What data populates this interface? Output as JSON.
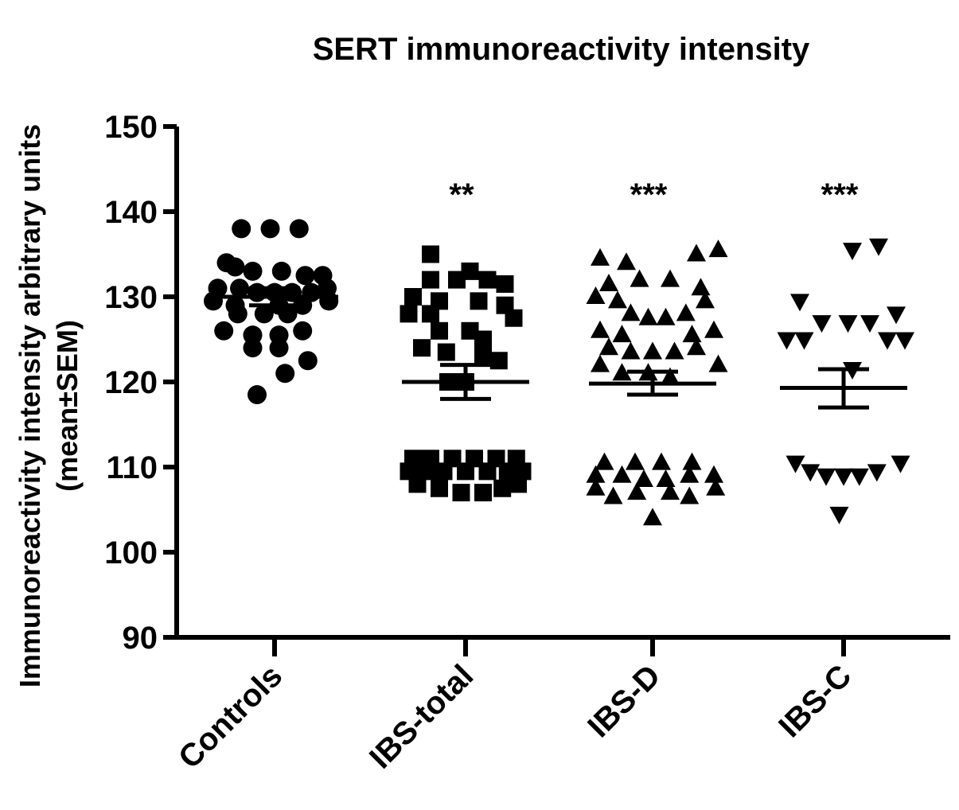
{
  "chart_data": {
    "type": "scatter",
    "title": "SERT immunoreactivity intensity",
    "ylabel_line1": "Immunoreactivity intensity arbitrary units",
    "ylabel_line2": "(mean±SEM)",
    "xlabel": "",
    "ylim": [
      90,
      150
    ],
    "yticks": [
      90,
      100,
      110,
      120,
      130,
      140,
      150
    ],
    "categories": [
      "Controls",
      "IBS-total",
      "IBS-D",
      "IBS-C"
    ],
    "grid": false,
    "legend": "none",
    "groups": [
      {
        "category": "Controls",
        "marker": "circle",
        "significance": "",
        "mean": 130.0,
        "sem_low": 129.0,
        "sem_high": 131.0,
        "points": [
          [
            -0.38,
            138
          ],
          [
            -0.05,
            138
          ],
          [
            0.28,
            138
          ],
          [
            -0.55,
            134
          ],
          [
            -0.45,
            133.5
          ],
          [
            -0.25,
            133
          ],
          [
            0.08,
            133
          ],
          [
            0.35,
            132.5
          ],
          [
            0.55,
            132.5
          ],
          [
            -0.65,
            131
          ],
          [
            -0.4,
            131
          ],
          [
            -0.2,
            130.5
          ],
          [
            0.0,
            130.5
          ],
          [
            0.2,
            130.5
          ],
          [
            0.42,
            130.5
          ],
          [
            0.6,
            131
          ],
          [
            -0.7,
            129.5
          ],
          [
            -0.45,
            129
          ],
          [
            0.05,
            129
          ],
          [
            0.32,
            129
          ],
          [
            0.62,
            129.5
          ],
          [
            -0.42,
            128
          ],
          [
            -0.12,
            128
          ],
          [
            0.15,
            128
          ],
          [
            -0.58,
            126
          ],
          [
            -0.25,
            125.5
          ],
          [
            0.05,
            125.5
          ],
          [
            0.32,
            126
          ],
          [
            -0.25,
            124
          ],
          [
            0.05,
            124
          ],
          [
            0.38,
            122.5
          ],
          [
            0.12,
            121
          ],
          [
            -0.2,
            118.5
          ]
        ]
      },
      {
        "category": "IBS-total",
        "marker": "square",
        "significance": "**",
        "mean": 120.0,
        "sem_low": 118.0,
        "sem_high": 122.0,
        "points": [
          [
            -0.4,
            135
          ],
          [
            -0.4,
            132
          ],
          [
            -0.1,
            132
          ],
          [
            0.05,
            133
          ],
          [
            0.25,
            132
          ],
          [
            0.45,
            131.5
          ],
          [
            -0.6,
            130
          ],
          [
            -0.3,
            129.5
          ],
          [
            0.15,
            129.5
          ],
          [
            0.45,
            129
          ],
          [
            -0.65,
            128
          ],
          [
            -0.4,
            128
          ],
          [
            0.55,
            127.5
          ],
          [
            -0.3,
            126
          ],
          [
            0.05,
            126
          ],
          [
            0.2,
            125
          ],
          [
            -0.5,
            124
          ],
          [
            -0.22,
            123.5
          ],
          [
            0.2,
            123
          ],
          [
            0.38,
            122.5
          ],
          [
            -0.2,
            120
          ],
          [
            0.0,
            120
          ],
          [
            -0.6,
            111
          ],
          [
            -0.4,
            111
          ],
          [
            -0.15,
            111
          ],
          [
            0.1,
            111
          ],
          [
            0.35,
            111
          ],
          [
            0.58,
            111
          ],
          [
            -0.65,
            109.5
          ],
          [
            -0.45,
            109.5
          ],
          [
            -0.25,
            109.5
          ],
          [
            0.0,
            109.5
          ],
          [
            0.25,
            109.5
          ],
          [
            0.48,
            109.5
          ],
          [
            0.65,
            109.5
          ],
          [
            -0.55,
            108
          ],
          [
            -0.3,
            107.5
          ],
          [
            -0.05,
            107
          ],
          [
            0.2,
            107
          ],
          [
            0.42,
            107.5
          ],
          [
            0.6,
            108
          ]
        ]
      },
      {
        "category": "IBS-D",
        "marker": "triangle",
        "significance": "***",
        "mean": 119.8,
        "sem_low": 118.5,
        "sem_high": 121.2,
        "points": [
          [
            -0.6,
            134.5
          ],
          [
            -0.3,
            134
          ],
          [
            0.5,
            135
          ],
          [
            0.75,
            135.5
          ],
          [
            -0.5,
            131.5
          ],
          [
            -0.15,
            132
          ],
          [
            0.2,
            132
          ],
          [
            0.55,
            131
          ],
          [
            -0.65,
            130
          ],
          [
            -0.4,
            129.5
          ],
          [
            0.6,
            129.5
          ],
          [
            -0.25,
            128
          ],
          [
            -0.05,
            127.5
          ],
          [
            0.15,
            127.5
          ],
          [
            0.38,
            128
          ],
          [
            -0.6,
            126
          ],
          [
            -0.35,
            125.5
          ],
          [
            0.45,
            125.5
          ],
          [
            0.7,
            126
          ],
          [
            -0.5,
            124
          ],
          [
            -0.25,
            123.5
          ],
          [
            0.0,
            123.5
          ],
          [
            0.25,
            123.5
          ],
          [
            0.5,
            124
          ],
          [
            -0.6,
            122
          ],
          [
            0.75,
            122
          ],
          [
            -0.35,
            121
          ],
          [
            -0.05,
            121
          ],
          [
            0.2,
            120.5
          ],
          [
            -0.55,
            110.5
          ],
          [
            -0.2,
            110.5
          ],
          [
            0.1,
            110.5
          ],
          [
            0.45,
            110.5
          ],
          [
            -0.65,
            109
          ],
          [
            -0.35,
            109
          ],
          [
            -0.1,
            108.5
          ],
          [
            0.15,
            108.5
          ],
          [
            0.42,
            109
          ],
          [
            0.7,
            109
          ],
          [
            -0.65,
            107.5
          ],
          [
            -0.45,
            106.5
          ],
          [
            -0.18,
            107
          ],
          [
            0.2,
            107
          ],
          [
            0.42,
            106.5
          ],
          [
            0.72,
            107.5
          ],
          [
            0.0,
            104
          ]
        ]
      },
      {
        "category": "IBS-C",
        "marker": "inverted-triangle",
        "significance": "***",
        "mean": 119.3,
        "sem_low": 117.0,
        "sem_high": 121.5,
        "points": [
          [
            0.1,
            135.5
          ],
          [
            0.4,
            136
          ],
          [
            -0.5,
            129.5
          ],
          [
            0.6,
            128
          ],
          [
            -0.25,
            127
          ],
          [
            0.05,
            127
          ],
          [
            0.3,
            127
          ],
          [
            -0.65,
            125
          ],
          [
            -0.45,
            125
          ],
          [
            0.5,
            125
          ],
          [
            0.7,
            125
          ],
          [
            0.1,
            121.5
          ],
          [
            -0.55,
            110.5
          ],
          [
            0.65,
            110.5
          ],
          [
            -0.38,
            109.5
          ],
          [
            -0.2,
            109
          ],
          [
            0.0,
            109
          ],
          [
            0.18,
            109
          ],
          [
            0.38,
            109.5
          ],
          [
            -0.05,
            104.5
          ]
        ]
      }
    ]
  }
}
